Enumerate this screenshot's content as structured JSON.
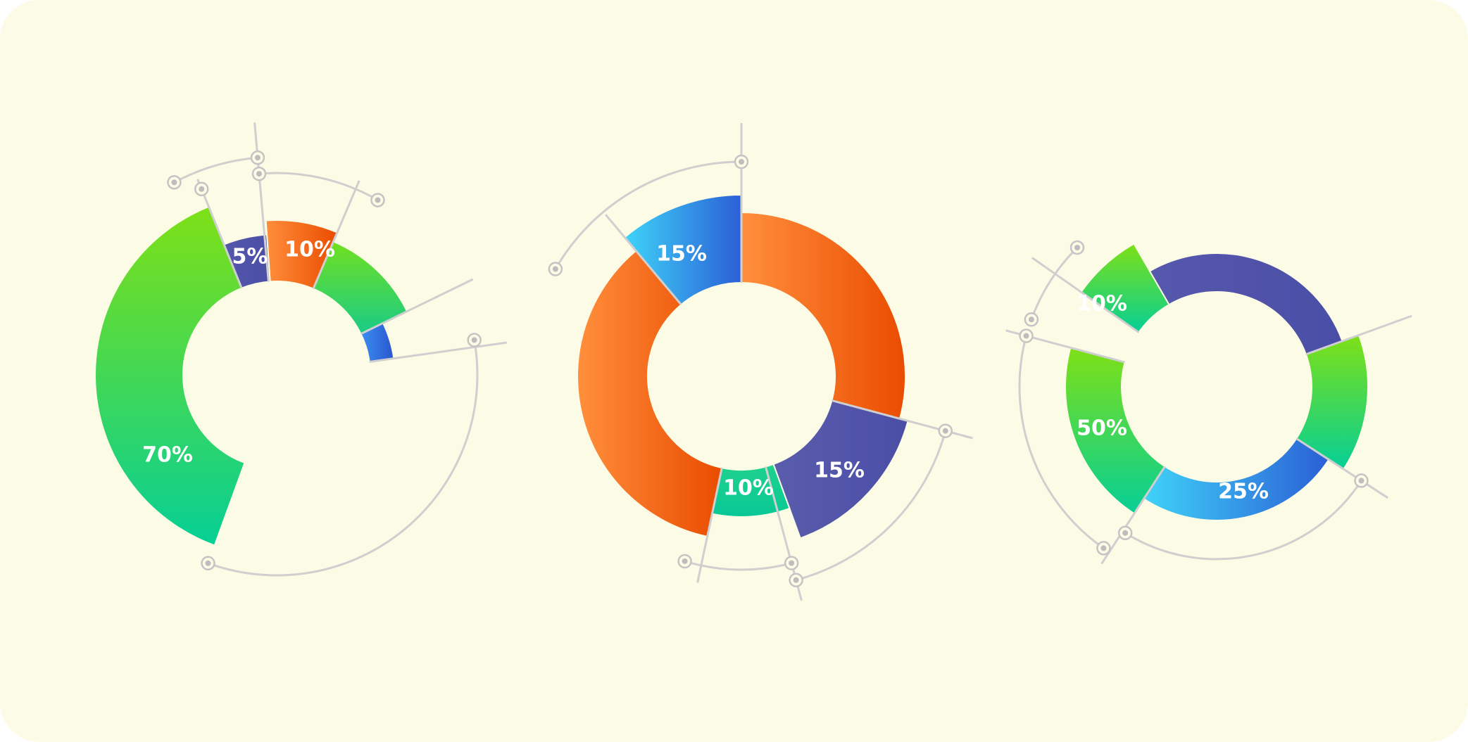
{
  "colors": {
    "background": "#fcfbe6",
    "guide": "#cfcfcf",
    "label": "#ffffff"
  },
  "chart_data": [
    {
      "type": "pie",
      "title": "",
      "unit": "%",
      "series": [
        {
          "label": "70%",
          "value": 70,
          "color_from": "#7ee016",
          "color_to": "#06cf96"
        },
        {
          "label": "5%",
          "value": 5,
          "color_from": "#5457ab",
          "color_to": "#4a4ea6"
        },
        {
          "label": "10%",
          "value": 10,
          "color_from": "#ff8f3c",
          "color_to": "#ea4c00"
        },
        {
          "label": "",
          "value": 10,
          "color_from": "#72e020",
          "color_to": "#18cc86"
        },
        {
          "label": "",
          "value": 5,
          "color_from": "#3b8ef0",
          "color_to": "#2a56cf"
        }
      ]
    },
    {
      "type": "pie",
      "title": "",
      "unit": "%",
      "series": [
        {
          "label": "15%",
          "value": 15,
          "color_from": "#3fd3f8",
          "color_to": "#2b5fd6"
        },
        {
          "label": "",
          "value": 30,
          "color_from": "#ff8f3c",
          "color_to": "#ea4c00"
        },
        {
          "label": "15%",
          "value": 15,
          "color_from": "#5a5cac",
          "color_to": "#4a4ea6"
        },
        {
          "label": "10%",
          "value": 10,
          "color_from": "#1fd28c",
          "color_to": "#09c896"
        },
        {
          "label": "",
          "value": 30,
          "color_from": "#ff8f3c",
          "color_to": "#ea4c00"
        }
      ]
    },
    {
      "type": "pie",
      "title": "",
      "unit": "%",
      "series": [
        {
          "label": "10%",
          "value": 10,
          "color_from": "#7ee016",
          "color_to": "#06cf96"
        },
        {
          "label": "",
          "value": 20,
          "color_from": "#5658ac",
          "color_to": "#4a4ea6"
        },
        {
          "label": "",
          "value": 10,
          "color_from": "#7ee016",
          "color_to": "#06cf96"
        },
        {
          "label": "25%",
          "value": 25,
          "color_from": "#3fd3f8",
          "color_to": "#2b5fd6"
        },
        {
          "label": "50%",
          "value": 50,
          "color_from": "#7ee016",
          "color_to": "#06cf96"
        }
      ]
    }
  ]
}
